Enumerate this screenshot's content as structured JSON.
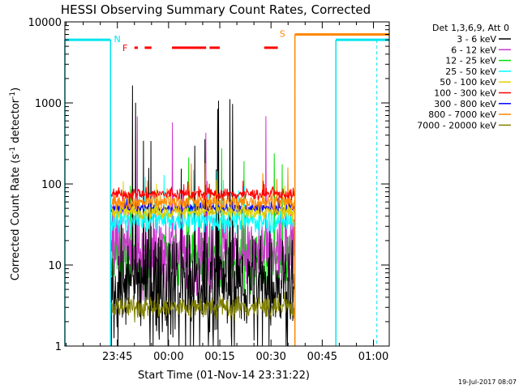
{
  "chart_data": {
    "type": "line",
    "title": "HESSI Observing Summary Count Rates, Corrected",
    "xlabel": "Start Time (01-Nov-14 23:31:22)",
    "ylabel_main": "Corrected Count Rate (s",
    "ylabel_sup1": "-1",
    "ylabel_mid": " detector",
    "ylabel_sup2": "-1",
    "ylabel_end": ")",
    "y_scale": "log",
    "ylim": [
      1,
      10000
    ],
    "xlim_minutes": [
      -15.37,
      79.63
    ],
    "x_ticks": [
      {
        "label": "23:45",
        "t": 0
      },
      {
        "label": "00:00",
        "t": 15
      },
      {
        "label": "00:15",
        "t": 30
      },
      {
        "label": "00:30",
        "t": 45
      },
      {
        "label": "00:45",
        "t": 60
      },
      {
        "label": "01:00",
        "t": 75
      }
    ],
    "y_ticks": [
      {
        "label": "1",
        "v": 1
      },
      {
        "label": "10",
        "v": 10
      },
      {
        "label": "100",
        "v": 100
      },
      {
        "label": "1000",
        "v": 1000
      },
      {
        "label": "10000",
        "v": 10000
      }
    ],
    "legend_header": "Det 1,3,6,9, Att 0",
    "legend_position": "outside-right",
    "series": [
      {
        "name": "3 - 6 keV",
        "color": "#000000",
        "base": 6,
        "spread": 0.45,
        "spike": 1800
      },
      {
        "name": "6 - 12 keV",
        "color": "#cc33cc",
        "base": 14,
        "spread": 0.35,
        "spike": 900
      },
      {
        "name": "12 - 25 keV",
        "color": "#00dd00",
        "base": 12,
        "spread": 0.25,
        "spike": 300
      },
      {
        "name": "25 - 50 keV",
        "color": "#00ffff",
        "base": 35,
        "spread": 0.1,
        "spike": 150
      },
      {
        "name": "50 - 100 keV",
        "color": "#e0d000",
        "base": 45,
        "spread": 0.06,
        "spike": 120
      },
      {
        "name": "100 - 300 keV",
        "color": "#ff0000",
        "base": 75,
        "spread": 0.05,
        "spike": 110
      },
      {
        "name": "300 - 800 keV",
        "color": "#0000ff",
        "base": 50,
        "spread": 0.05,
        "spike": 70
      },
      {
        "name": "800 - 7000 keV",
        "color": "#ff8800",
        "base": 60,
        "spread": 0.07,
        "spike": 200
      },
      {
        "name": "7000 - 20000 keV",
        "color": "#808000",
        "base": 3,
        "spread": 0.1,
        "spike": 4
      }
    ],
    "data_window_minutes": [
      -2.0,
      52.0
    ],
    "flags": [
      {
        "label": "N",
        "color": "#00e5ee",
        "level": 6000,
        "segments": [
          [
            -15.37,
            -2.0
          ],
          [
            64.0,
            79.63
          ]
        ],
        "dash_marker": -2.0,
        "dash_marker2": 76.0
      },
      {
        "label": "S",
        "color": "#ff8800",
        "level": 7000,
        "segments": [
          [
            52.0,
            79.63
          ]
        ],
        "dash_marker": 52.0
      }
    ],
    "flare_flag": {
      "label": "F",
      "color": "#ff0000",
      "level": 4800,
      "segments": [
        [
          5.0,
          6.0
        ],
        [
          8.0,
          10.0
        ],
        [
          16.0,
          26.0
        ],
        [
          27.0,
          30.0
        ],
        [
          43.0,
          47.0
        ]
      ]
    },
    "timestamp": "19-Jul-2017 08:07"
  }
}
